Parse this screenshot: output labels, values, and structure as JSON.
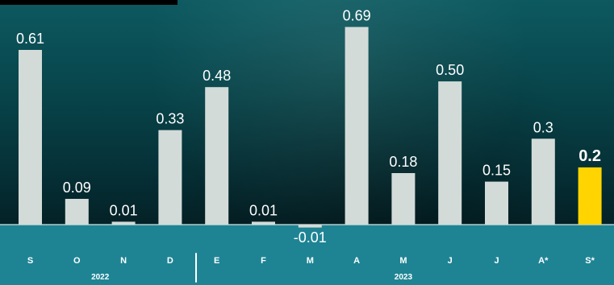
{
  "chart_data": {
    "type": "bar",
    "categories": [
      "S",
      "O",
      "N",
      "D",
      "E",
      "F",
      "M",
      "A",
      "M",
      "J",
      "J",
      "A*",
      "S*"
    ],
    "values": [
      0.61,
      0.09,
      0.01,
      0.33,
      0.48,
      0.01,
      -0.01,
      0.69,
      0.18,
      0.5,
      0.15,
      0.3,
      0.2
    ],
    "labels": [
      "0.61",
      "0.09",
      "0.01",
      "0.33",
      "0.48",
      "0.01",
      "-0.01",
      "0.69",
      "0.18",
      "0.50",
      "0.15",
      "0.3",
      "0.2"
    ],
    "highlight_index": 12,
    "year_groups": [
      {
        "label": "2022",
        "start": 0,
        "end": 3
      },
      {
        "label": "2023",
        "start": 4,
        "end": 12
      }
    ],
    "ylim": [
      -0.02,
      0.75
    ],
    "grid": false,
    "colors": {
      "bar": "#d3dbd8",
      "highlight": "#ffd400",
      "axis_band": "#1e8494",
      "background_top": "#0d5960",
      "background_bottom": "#03262c"
    }
  }
}
